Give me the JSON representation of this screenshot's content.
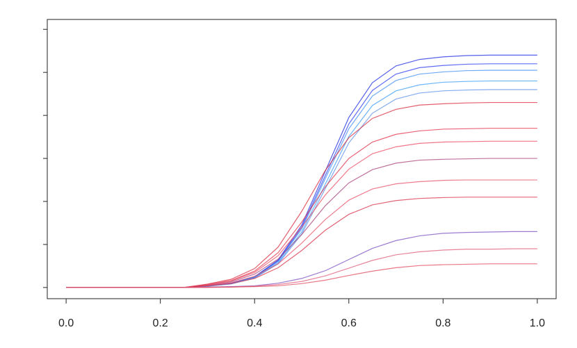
{
  "chart_data": {
    "type": "line",
    "x": [
      0,
      0.05,
      0.1,
      0.15,
      0.2,
      0.25,
      0.3,
      0.35,
      0.4,
      0.45,
      0.5,
      0.55,
      0.6,
      0.65,
      0.7,
      0.75,
      0.8,
      0.85,
      0.9,
      0.95,
      1.0
    ],
    "xlim": [
      -0.04,
      1.04
    ],
    "xticks": [
      {
        "value": 0,
        "label": "0.0"
      },
      {
        "value": 0.2,
        "label": "0.2"
      },
      {
        "value": 0.4,
        "label": "0.4"
      },
      {
        "value": 0.6,
        "label": "0.6"
      },
      {
        "value": 0.8,
        "label": "0.8"
      },
      {
        "value": 1,
        "label": "1.0"
      }
    ],
    "ylim": [
      -0.26,
      6.23
    ],
    "yticks": [
      0,
      1,
      2,
      3,
      4,
      5,
      6
    ],
    "series": [
      {
        "color": "#1c2be0",
        "values": [
          0,
          0,
          0,
          0,
          0,
          0,
          0.04,
          0.1,
          0.25,
          0.64,
          1.45,
          2.7,
          3.95,
          4.76,
          5.15,
          5.3,
          5.36,
          5.39,
          5.4,
          5.4,
          5.4
        ]
      },
      {
        "color": "#2a3cf0",
        "values": [
          0,
          0,
          0,
          0,
          0,
          0,
          0.04,
          0.09,
          0.24,
          0.62,
          1.4,
          2.6,
          3.8,
          4.58,
          4.96,
          5.11,
          5.16,
          5.19,
          5.2,
          5.2,
          5.2
        ]
      },
      {
        "color": "#3f8ef5",
        "values": [
          0,
          0,
          0,
          0,
          0,
          0,
          0.04,
          0.09,
          0.24,
          0.6,
          1.36,
          2.53,
          3.69,
          4.45,
          4.81,
          4.96,
          5.01,
          5.04,
          5.05,
          5.05,
          5.05
        ]
      },
      {
        "color": "#3a9cf7",
        "values": [
          0,
          0,
          0,
          0,
          0,
          0,
          0.03,
          0.09,
          0.23,
          0.57,
          1.29,
          2.4,
          3.51,
          4.23,
          4.57,
          4.71,
          4.77,
          4.79,
          4.8,
          4.8,
          4.8
        ]
      },
      {
        "color": "#5b8de8",
        "values": [
          0,
          0,
          0,
          0,
          0,
          0,
          0.03,
          0.08,
          0.22,
          0.55,
          1.24,
          2.3,
          3.36,
          4.05,
          4.38,
          4.52,
          4.57,
          4.59,
          4.6,
          4.6,
          4.6
        ]
      },
      {
        "color": "#d8283a",
        "values": [
          0,
          0,
          0,
          0,
          0,
          0,
          0.08,
          0.19,
          0.44,
          0.94,
          1.77,
          2.72,
          3.48,
          3.93,
          4.14,
          4.24,
          4.27,
          4.29,
          4.3,
          4.3,
          4.3
        ]
      },
      {
        "color": "#e2304a",
        "values": [
          0,
          0,
          0,
          0,
          0,
          0,
          0.07,
          0.16,
          0.38,
          0.81,
          1.52,
          2.34,
          3.0,
          3.38,
          3.56,
          3.64,
          3.68,
          3.69,
          3.7,
          3.7,
          3.7
        ]
      },
      {
        "color": "#ec4a60",
        "values": [
          0,
          0,
          0,
          0,
          0,
          0,
          0.06,
          0.15,
          0.35,
          0.74,
          1.4,
          2.15,
          2.75,
          3.11,
          3.27,
          3.35,
          3.38,
          3.39,
          3.4,
          3.4,
          3.4
        ]
      },
      {
        "color": "#a8407a",
        "values": [
          0,
          0,
          0,
          0,
          0,
          0,
          0.05,
          0.13,
          0.31,
          0.66,
          1.23,
          1.9,
          2.43,
          2.74,
          2.89,
          2.96,
          2.98,
          2.99,
          3,
          3,
          3
        ]
      },
      {
        "color": "#e8506a",
        "values": [
          0,
          0,
          0,
          0,
          0,
          0,
          0.05,
          0.11,
          0.26,
          0.55,
          1.03,
          1.58,
          2.03,
          2.29,
          2.41,
          2.46,
          2.49,
          2.5,
          2.5,
          2.5,
          2.5
        ]
      },
      {
        "color": "#d83048",
        "values": [
          0,
          0,
          0,
          0,
          0,
          0,
          0.04,
          0.09,
          0.21,
          0.46,
          0.86,
          1.33,
          1.7,
          1.92,
          2.02,
          2.07,
          2.09,
          2.1,
          2.1,
          2.1,
          2.1
        ]
      },
      {
        "color": "#7a4fc0",
        "values": [
          0,
          0,
          0,
          0,
          0,
          0,
          0.01,
          0.02,
          0.04,
          0.1,
          0.21,
          0.39,
          0.65,
          0.91,
          1.09,
          1.2,
          1.26,
          1.28,
          1.29,
          1.3,
          1.3
        ]
      },
      {
        "color": "#e05a78",
        "values": [
          0,
          0,
          0,
          0,
          0,
          0,
          0.01,
          0.01,
          0.03,
          0.07,
          0.14,
          0.27,
          0.45,
          0.63,
          0.76,
          0.83,
          0.87,
          0.89,
          0.89,
          0.9,
          0.9
        ]
      },
      {
        "color": "#e2485c",
        "values": [
          0,
          0,
          0,
          0,
          0,
          0,
          0,
          0.01,
          0.02,
          0.04,
          0.09,
          0.17,
          0.28,
          0.38,
          0.46,
          0.51,
          0.53,
          0.54,
          0.55,
          0.55,
          0.55
        ]
      }
    ]
  }
}
